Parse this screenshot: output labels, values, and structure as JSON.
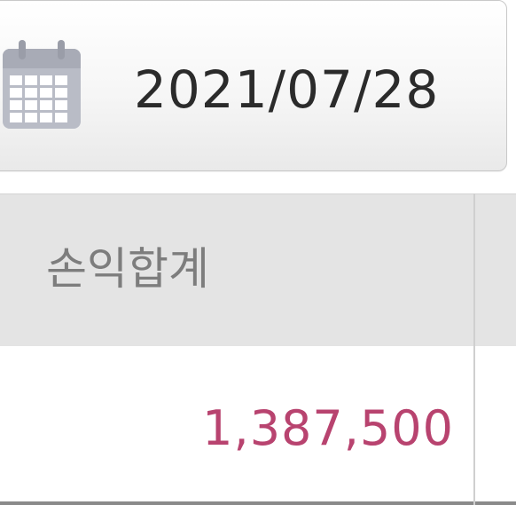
{
  "date_picker": {
    "icon": "calendar-icon",
    "date_value": "2021/07/28"
  },
  "table": {
    "columns": [
      {
        "label": "손익합계"
      }
    ],
    "rows": [
      {
        "cells": [
          "1,387,500"
        ]
      }
    ],
    "colors": {
      "header_background": "#e4e4e4",
      "header_text": "#7d7d7d",
      "value_text": "#b8436f"
    }
  }
}
